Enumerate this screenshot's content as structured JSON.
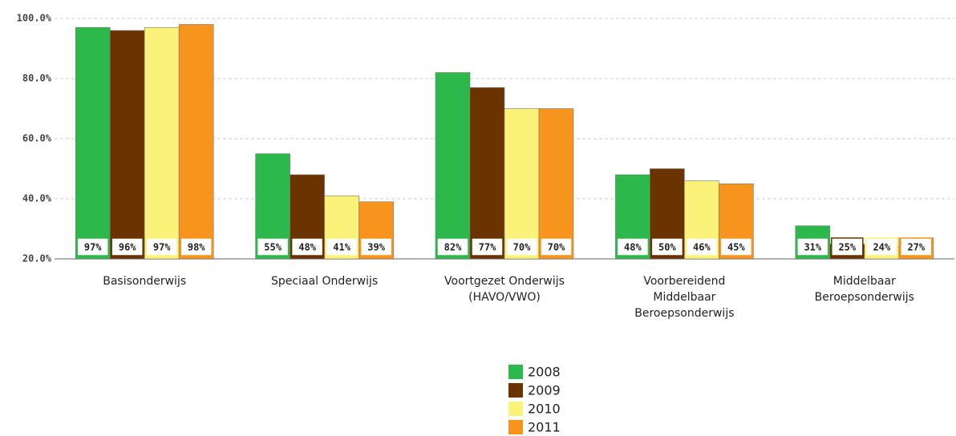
{
  "chart_data": {
    "type": "bar",
    "categories": [
      "Basisonderwijs",
      "Speciaal Onderwijs",
      "Voortgezet Onderwijs\n(HAVO/VWO)",
      "Voorbereidend\nMiddelbaar\nBeroepsonderwijs",
      "Middelbaar\nBeroepsonderwijs"
    ],
    "series": [
      {
        "name": "2008",
        "color": "#2db84b",
        "values": [
          97,
          55,
          82,
          48,
          31
        ],
        "value_labels": [
          "97%",
          "55%",
          "82%",
          "48%",
          "31%"
        ]
      },
      {
        "name": "2009",
        "color": "#6b3300",
        "values": [
          96,
          48,
          77,
          50,
          25
        ],
        "value_labels": [
          "96%",
          "48%",
          "77%",
          "50%",
          "25%"
        ]
      },
      {
        "name": "2010",
        "color": "#fbf27a",
        "values": [
          97,
          41,
          70,
          46,
          24
        ],
        "value_labels": [
          "97%",
          "41%",
          "70%",
          "46%",
          "24%"
        ]
      },
      {
        "name": "2011",
        "color": "#f7941d",
        "values": [
          98,
          39,
          70,
          45,
          27
        ],
        "value_labels": [
          "98%",
          "39%",
          "70%",
          "45%",
          "27%"
        ]
      }
    ],
    "ylim": [
      20,
      100
    ],
    "yticks": [
      {
        "value": 20,
        "label": "20.0%"
      },
      {
        "value": 40,
        "label": "40.0%"
      },
      {
        "value": 60,
        "label": "60.0%"
      },
      {
        "value": 80,
        "label": "80.0%"
      },
      {
        "value": 100,
        "label": "100.0%"
      }
    ],
    "grid": true,
    "legend": "bottom"
  }
}
